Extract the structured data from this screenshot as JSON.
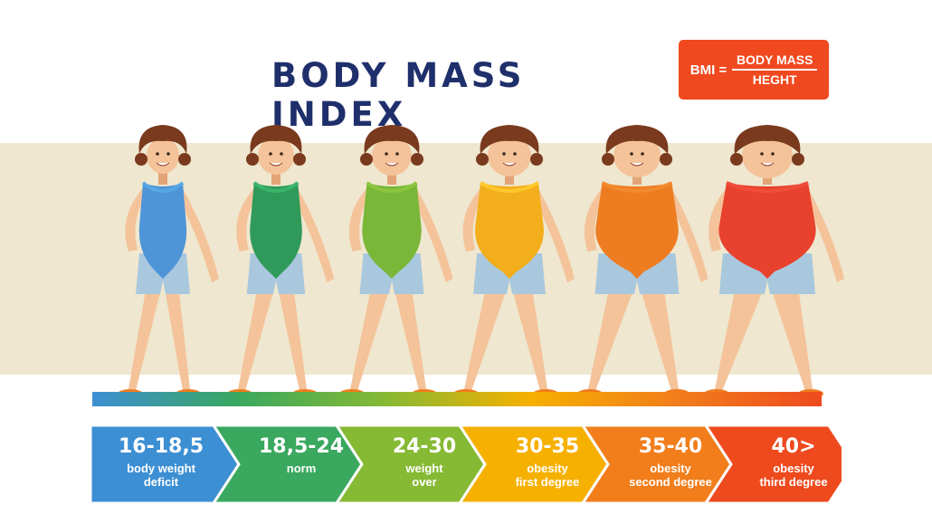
{
  "title": "BODY MASS INDEX",
  "formula": {
    "lhs": "BMI =",
    "numerator": "BODY MASS",
    "denominator": "HEGHT"
  },
  "categories": [
    {
      "range": "16-18,5",
      "desc1": "body weight",
      "desc2": "deficit",
      "color": "#3d8fd3",
      "top": "#57a7e6",
      "body": "#4e95d8"
    },
    {
      "range": "18,5-24",
      "desc1": "norm",
      "desc2": "",
      "color": "#3aa85f",
      "top": "#3ab36a",
      "body": "#2f9a5a"
    },
    {
      "range": "24-30",
      "desc1": "weight",
      "desc2": "over",
      "color": "#86b934",
      "top": "#8cc63f",
      "body": "#7ab638"
    },
    {
      "range": "30-35",
      "desc1": "obesity",
      "desc2": "first degree",
      "color": "#f6b000",
      "top": "#ffc72c",
      "body": "#f2ae1b"
    },
    {
      "range": "35-40",
      "desc1": "obesity",
      "desc2": "second degree",
      "color": "#f17e1b",
      "top": "#f28a2e",
      "body": "#ee7d22"
    },
    {
      "range": "40>",
      "desc1": "obesity",
      "desc2": "third degree",
      "color": "#ee4a1e",
      "top": "#ef4d3a",
      "body": "#e8412d"
    }
  ]
}
